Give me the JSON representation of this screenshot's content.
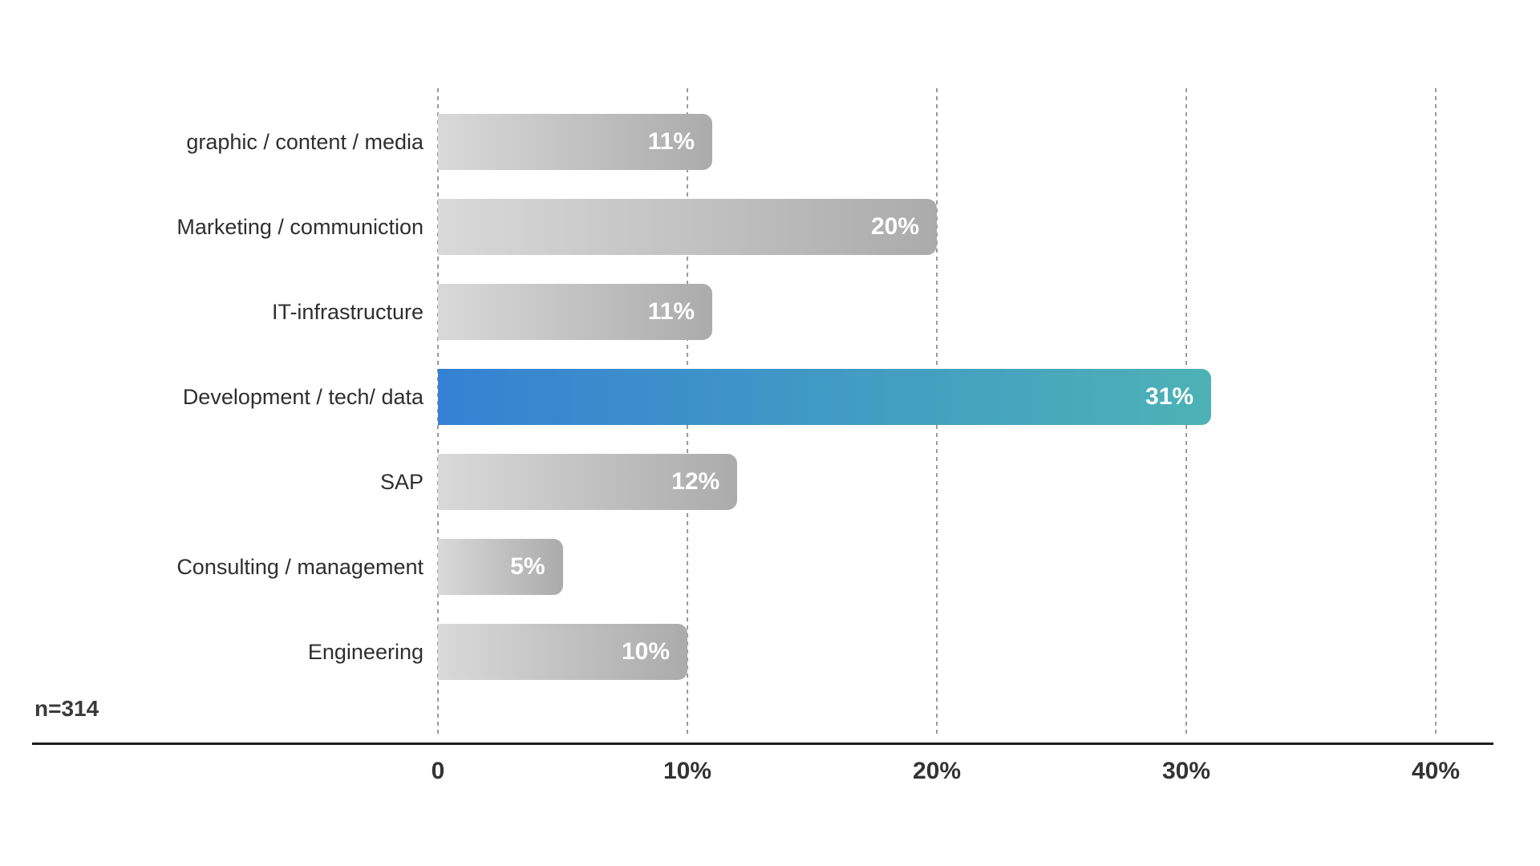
{
  "chart_data": {
    "type": "bar",
    "orientation": "horizontal",
    "title": "",
    "categories": [
      "graphic / content / media",
      "Marketing / communiction",
      "IT-infrastructure",
      "Development / tech/ data",
      "SAP",
      "Consulting / management",
      "Engineering"
    ],
    "values": [
      11,
      20,
      11,
      31,
      12,
      5,
      10
    ],
    "value_labels": [
      "11%",
      "20%",
      "11%",
      "31%",
      "12%",
      "5%",
      "10%"
    ],
    "highlight_index": 3,
    "x_ticks": [
      {
        "label": "0",
        "value": 0
      },
      {
        "label": "10%",
        "value": 10
      },
      {
        "label": "20%",
        "value": 20
      },
      {
        "label": "30%",
        "value": 30
      },
      {
        "label": "40%",
        "value": 40
      }
    ],
    "xlim": [
      0,
      40
    ],
    "grid": "vertical-dashed",
    "legend": "none",
    "note": "n=314",
    "colors": {
      "bar_gradient_start": "#d9d9d9",
      "bar_gradient_end": "#ababab",
      "highlight_gradient_start": "#3581d3",
      "highlight_gradient_end": "#4db2b6",
      "value_label": "#ffffff",
      "gridline": "#9b9b9b",
      "axis_line": "#1d1d1d",
      "category_text": "#2f2f2f",
      "tick_text": "#333333"
    }
  }
}
